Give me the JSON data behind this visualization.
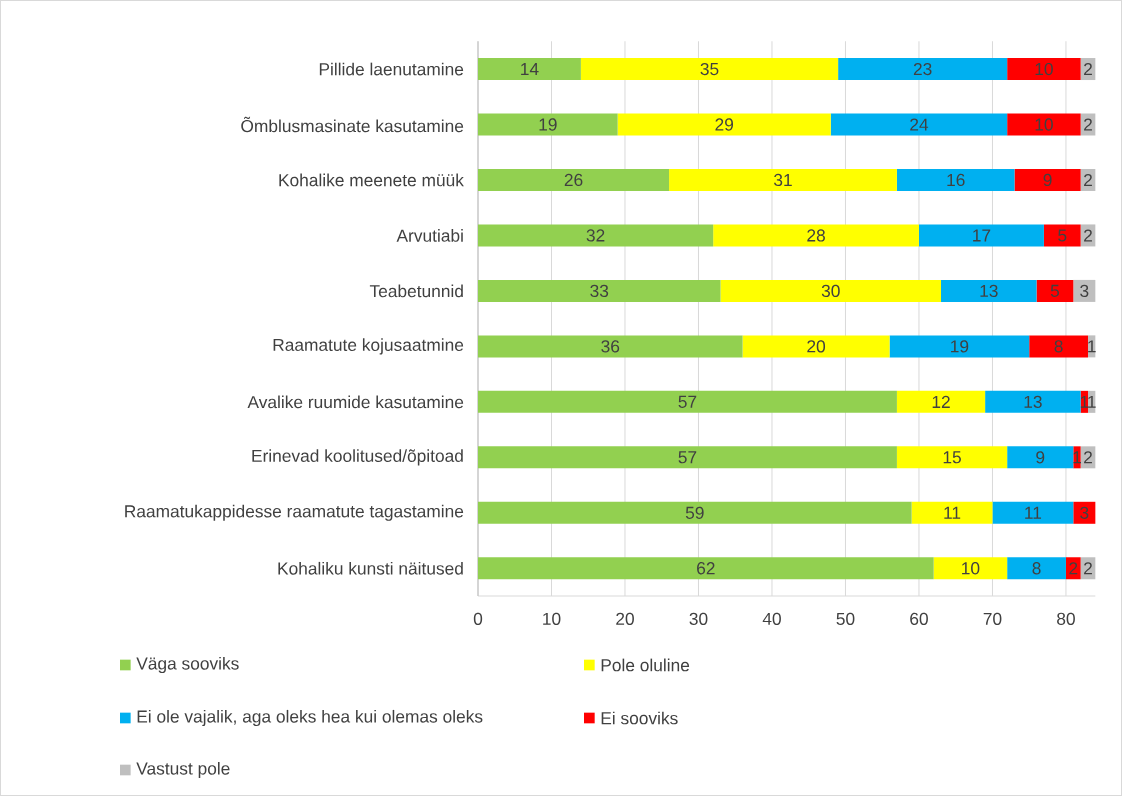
{
  "chart_data": {
    "type": "bar",
    "orientation": "horizontal",
    "stacked": true,
    "categories": [
      "Pillide laenutamine",
      "Õmblusmasinate kasutamine",
      "Kohalike meenete müük",
      "Arvutiabi",
      "Teabetunnid",
      "Raamatute kojusaatmine",
      "Avalike ruumide kasutamine",
      "Erinevad koolitused/õpitoad",
      "Raamatukappidesse raamatute tagastamine",
      "Kohaliku kunsti näitused"
    ],
    "series": [
      {
        "name": "Väga sooviks",
        "color": "#92d050",
        "values": [
          14,
          19,
          26,
          32,
          33,
          36,
          57,
          57,
          59,
          62
        ]
      },
      {
        "name": "Pole oluline",
        "color": "#ffff00",
        "values": [
          35,
          29,
          31,
          28,
          30,
          20,
          12,
          15,
          11,
          10
        ]
      },
      {
        "name": "Ei ole vajalik, aga oleks hea kui olemas oleks",
        "color": "#00b0f0",
        "values": [
          23,
          24,
          16,
          17,
          13,
          19,
          13,
          9,
          11,
          8
        ]
      },
      {
        "name": "Ei sooviks",
        "color": "#ff0000",
        "values": [
          10,
          10,
          9,
          5,
          5,
          8,
          1,
          1,
          3,
          2
        ]
      },
      {
        "name": "Vastust pole",
        "color": "#bfbfbf",
        "values": [
          2,
          2,
          2,
          2,
          3,
          1,
          1,
          2,
          null,
          2
        ]
      }
    ],
    "xlim": [
      0,
      84
    ],
    "xticks": [
      0,
      10,
      20,
      30,
      40,
      50,
      60,
      70,
      80
    ],
    "grid": "x",
    "legend": "bottom",
    "data_labels": true
  }
}
